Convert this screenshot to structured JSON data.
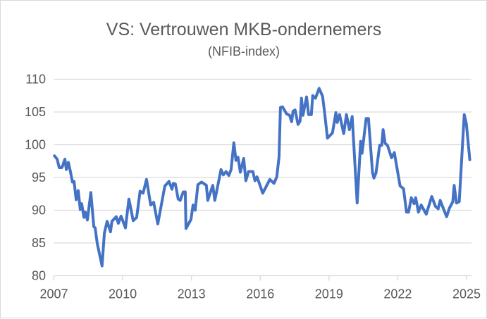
{
  "chart_data": {
    "type": "line",
    "title": "VS: Vertrouwen MKB-ondernemers",
    "subtitle": "(NFIB-index)",
    "xlabel": "",
    "ylabel": "",
    "xlim": [
      2007,
      2025.2
    ],
    "ylim": [
      80,
      110
    ],
    "grid": true,
    "legend": "none",
    "line_color": "#4472C4",
    "y_ticks": [
      "80",
      "85",
      "90",
      "95",
      "100",
      "105",
      "110"
    ],
    "x_ticks": [
      "2007",
      "2010",
      "2013",
      "2016",
      "2019",
      "2022",
      "2025"
    ],
    "series": [
      {
        "name": "NFIB-index",
        "points": [
          [
            2007.02,
            98.3
          ],
          [
            2007.14,
            97.8
          ],
          [
            2007.23,
            96.5
          ],
          [
            2007.35,
            96.5
          ],
          [
            2007.48,
            97.8
          ],
          [
            2007.54,
            96.2
          ],
          [
            2007.63,
            97.3
          ],
          [
            2007.72,
            95.9
          ],
          [
            2007.81,
            94.3
          ],
          [
            2007.88,
            94.4
          ],
          [
            2007.97,
            91.6
          ],
          [
            2008.06,
            93.0
          ],
          [
            2008.15,
            90.1
          ],
          [
            2008.21,
            91.0
          ],
          [
            2008.31,
            88.9
          ],
          [
            2008.37,
            89.7
          ],
          [
            2008.46,
            88.5
          ],
          [
            2008.61,
            92.7
          ],
          [
            2008.74,
            87.5
          ],
          [
            2008.8,
            87.3
          ],
          [
            2008.89,
            84.9
          ],
          [
            2009.1,
            81.5
          ],
          [
            2009.2,
            86.5
          ],
          [
            2009.32,
            88.3
          ],
          [
            2009.47,
            86.7
          ],
          [
            2009.53,
            88.3
          ],
          [
            2009.72,
            89.0
          ],
          [
            2009.81,
            88.0
          ],
          [
            2009.93,
            89.1
          ],
          [
            2010.12,
            87.3
          ],
          [
            2010.27,
            91.7
          ],
          [
            2010.46,
            88.4
          ],
          [
            2010.61,
            88.9
          ],
          [
            2010.76,
            92.9
          ],
          [
            2010.89,
            92.6
          ],
          [
            2011.04,
            94.7
          ],
          [
            2011.22,
            90.8
          ],
          [
            2011.35,
            91.2
          ],
          [
            2011.53,
            87.9
          ],
          [
            2011.84,
            93.7
          ],
          [
            2012.02,
            94.4
          ],
          [
            2012.15,
            93.2
          ],
          [
            2012.21,
            94.1
          ],
          [
            2012.3,
            94.0
          ],
          [
            2012.42,
            91.7
          ],
          [
            2012.51,
            91.5
          ],
          [
            2012.64,
            92.8
          ],
          [
            2012.73,
            92.8
          ],
          [
            2012.76,
            87.2
          ],
          [
            2012.98,
            88.6
          ],
          [
            2013.07,
            90.8
          ],
          [
            2013.16,
            90.0
          ],
          [
            2013.28,
            93.9
          ],
          [
            2013.44,
            94.3
          ],
          [
            2013.65,
            93.8
          ],
          [
            2013.71,
            91.5
          ],
          [
            2013.93,
            93.8
          ],
          [
            2014.02,
            91.5
          ],
          [
            2014.29,
            96.2
          ],
          [
            2014.39,
            95.4
          ],
          [
            2014.51,
            95.9
          ],
          [
            2014.63,
            95.3
          ],
          [
            2014.73,
            96.2
          ],
          [
            2014.85,
            100.3
          ],
          [
            2014.94,
            97.6
          ],
          [
            2015.03,
            98.1
          ],
          [
            2015.13,
            95.8
          ],
          [
            2015.28,
            97.9
          ],
          [
            2015.37,
            94.5
          ],
          [
            2015.49,
            95.9
          ],
          [
            2015.68,
            95.9
          ],
          [
            2015.77,
            94.5
          ],
          [
            2015.86,
            95.1
          ],
          [
            2016.11,
            92.6
          ],
          [
            2016.42,
            94.7
          ],
          [
            2016.6,
            94.1
          ],
          [
            2016.72,
            95.1
          ],
          [
            2016.82,
            98.1
          ],
          [
            2016.88,
            105.7
          ],
          [
            2016.97,
            105.8
          ],
          [
            2017.15,
            104.7
          ],
          [
            2017.28,
            104.5
          ],
          [
            2017.37,
            103.5
          ],
          [
            2017.43,
            105.1
          ],
          [
            2017.52,
            105.3
          ],
          [
            2017.65,
            103.1
          ],
          [
            2017.74,
            103.6
          ],
          [
            2017.8,
            107.1
          ],
          [
            2017.86,
            104.5
          ],
          [
            2018.02,
            107.3
          ],
          [
            2018.11,
            104.6
          ],
          [
            2018.23,
            104.6
          ],
          [
            2018.29,
            107.5
          ],
          [
            2018.41,
            107.1
          ],
          [
            2018.57,
            108.6
          ],
          [
            2018.72,
            107.4
          ],
          [
            2018.81,
            104.8
          ],
          [
            2018.93,
            101.0
          ],
          [
            2019.15,
            101.8
          ],
          [
            2019.3,
            104.9
          ],
          [
            2019.36,
            103.4
          ],
          [
            2019.46,
            104.6
          ],
          [
            2019.64,
            101.7
          ],
          [
            2019.76,
            104.6
          ],
          [
            2019.89,
            102.3
          ],
          [
            2020.01,
            104.3
          ],
          [
            2020.23,
            91.1
          ],
          [
            2020.38,
            100.5
          ],
          [
            2020.44,
            98.7
          ],
          [
            2020.62,
            104.0
          ],
          [
            2020.72,
            104.0
          ],
          [
            2020.9,
            95.7
          ],
          [
            2020.96,
            94.9
          ],
          [
            2021.05,
            95.7
          ],
          [
            2021.21,
            99.9
          ],
          [
            2021.3,
            99.9
          ],
          [
            2021.36,
            102.3
          ],
          [
            2021.45,
            100.2
          ],
          [
            2021.55,
            99.9
          ],
          [
            2021.73,
            98.0
          ],
          [
            2021.85,
            98.8
          ],
          [
            2022.1,
            93.7
          ],
          [
            2022.25,
            93.3
          ],
          [
            2022.38,
            89.7
          ],
          [
            2022.47,
            89.7
          ],
          [
            2022.59,
            91.9
          ],
          [
            2022.71,
            91.0
          ],
          [
            2022.78,
            91.9
          ],
          [
            2022.9,
            89.7
          ],
          [
            2023.02,
            90.8
          ],
          [
            2023.24,
            89.4
          ],
          [
            2023.48,
            92.1
          ],
          [
            2023.64,
            90.6
          ],
          [
            2023.76,
            90.2
          ],
          [
            2023.85,
            91.5
          ],
          [
            2024.13,
            89.0
          ],
          [
            2024.25,
            90.3
          ],
          [
            2024.4,
            91.3
          ],
          [
            2024.46,
            93.8
          ],
          [
            2024.56,
            91.1
          ],
          [
            2024.68,
            91.3
          ],
          [
            2024.9,
            104.6
          ],
          [
            2024.99,
            103.2
          ],
          [
            2025.14,
            97.7
          ]
        ]
      }
    ]
  }
}
